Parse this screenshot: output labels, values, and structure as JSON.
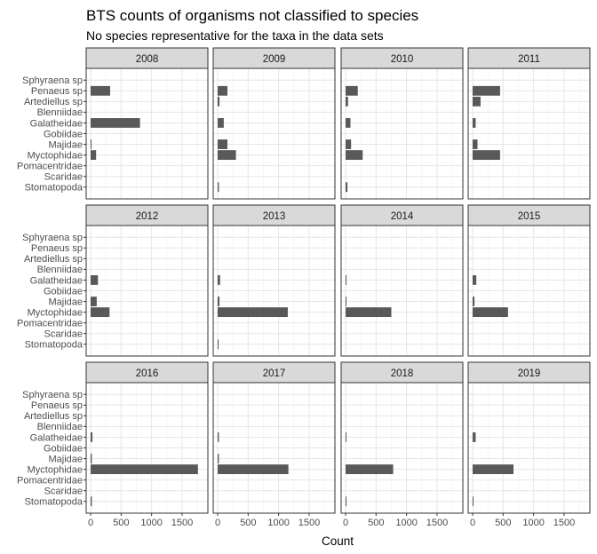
{
  "chart_data": {
    "type": "bar",
    "orientation": "horizontal",
    "title": "BTS counts of organisms not classified to species",
    "subtitle": "No species representative for the taxa in the data sets",
    "xlabel": "Count",
    "ylabel": "",
    "xlim": [
      0,
      1850
    ],
    "xticks": [
      0,
      500,
      1000,
      1500
    ],
    "grid": true,
    "bar_color": "#595959",
    "categories": [
      "Sphyraena sp",
      "Penaeus sp",
      "Artediellus sp",
      "Blenniidae",
      "Galatheidae",
      "Gobiidae",
      "Majidae",
      "Myctophidae",
      "Pomacentridae",
      "Scaridae",
      "Stomatopoda"
    ],
    "panels": [
      {
        "label": "2008",
        "values": [
          0,
          320,
          0,
          0,
          810,
          0,
          15,
          90,
          0,
          0,
          0
        ]
      },
      {
        "label": "2009",
        "values": [
          0,
          160,
          30,
          0,
          100,
          0,
          160,
          300,
          0,
          0,
          20
        ]
      },
      {
        "label": "2010",
        "values": [
          0,
          200,
          40,
          0,
          80,
          0,
          90,
          280,
          0,
          0,
          30
        ]
      },
      {
        "label": "2011",
        "values": [
          0,
          450,
          130,
          0,
          50,
          0,
          80,
          450,
          0,
          0,
          0
        ]
      },
      {
        "label": "2012",
        "values": [
          0,
          0,
          0,
          0,
          120,
          0,
          100,
          310,
          0,
          0,
          0
        ]
      },
      {
        "label": "2013",
        "values": [
          0,
          0,
          0,
          0,
          40,
          0,
          30,
          1150,
          0,
          0,
          15
        ]
      },
      {
        "label": "2014",
        "values": [
          0,
          0,
          0,
          0,
          15,
          0,
          15,
          750,
          0,
          0,
          0
        ]
      },
      {
        "label": "2015",
        "values": [
          0,
          0,
          0,
          0,
          60,
          0,
          30,
          580,
          0,
          0,
          0
        ]
      },
      {
        "label": "2016",
        "values": [
          0,
          0,
          0,
          0,
          30,
          0,
          20,
          1760,
          0,
          0,
          20
        ]
      },
      {
        "label": "2017",
        "values": [
          0,
          0,
          0,
          0,
          20,
          0,
          20,
          1160,
          0,
          0,
          0
        ]
      },
      {
        "label": "2018",
        "values": [
          0,
          0,
          0,
          0,
          15,
          0,
          0,
          780,
          0,
          0,
          15
        ]
      },
      {
        "label": "2019",
        "values": [
          0,
          0,
          0,
          0,
          50,
          0,
          0,
          670,
          0,
          0,
          15
        ]
      }
    ]
  }
}
